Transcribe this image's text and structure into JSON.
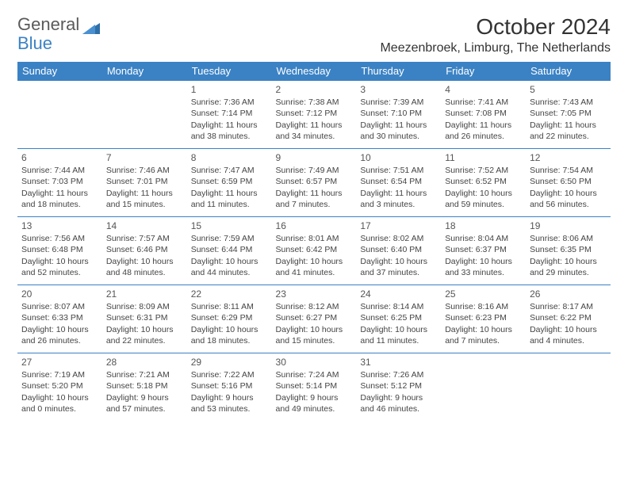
{
  "logo": {
    "general": "General",
    "blue": "Blue"
  },
  "title": "October 2024",
  "location": "Meezenbroek, Limburg, The Netherlands",
  "colors": {
    "header_bg": "#3b82c4",
    "header_fg": "#ffffff",
    "border": "#3b82c4",
    "text": "#333333",
    "logo_gray": "#5a5a5a",
    "logo_blue": "#3b82c4"
  },
  "day_headers": [
    "Sunday",
    "Monday",
    "Tuesday",
    "Wednesday",
    "Thursday",
    "Friday",
    "Saturday"
  ],
  "weeks": [
    [
      null,
      null,
      {
        "n": "1",
        "sunrise": "Sunrise: 7:36 AM",
        "sunset": "Sunset: 7:14 PM",
        "daylight": "Daylight: 11 hours and 38 minutes."
      },
      {
        "n": "2",
        "sunrise": "Sunrise: 7:38 AM",
        "sunset": "Sunset: 7:12 PM",
        "daylight": "Daylight: 11 hours and 34 minutes."
      },
      {
        "n": "3",
        "sunrise": "Sunrise: 7:39 AM",
        "sunset": "Sunset: 7:10 PM",
        "daylight": "Daylight: 11 hours and 30 minutes."
      },
      {
        "n": "4",
        "sunrise": "Sunrise: 7:41 AM",
        "sunset": "Sunset: 7:08 PM",
        "daylight": "Daylight: 11 hours and 26 minutes."
      },
      {
        "n": "5",
        "sunrise": "Sunrise: 7:43 AM",
        "sunset": "Sunset: 7:05 PM",
        "daylight": "Daylight: 11 hours and 22 minutes."
      }
    ],
    [
      {
        "n": "6",
        "sunrise": "Sunrise: 7:44 AM",
        "sunset": "Sunset: 7:03 PM",
        "daylight": "Daylight: 11 hours and 18 minutes."
      },
      {
        "n": "7",
        "sunrise": "Sunrise: 7:46 AM",
        "sunset": "Sunset: 7:01 PM",
        "daylight": "Daylight: 11 hours and 15 minutes."
      },
      {
        "n": "8",
        "sunrise": "Sunrise: 7:47 AM",
        "sunset": "Sunset: 6:59 PM",
        "daylight": "Daylight: 11 hours and 11 minutes."
      },
      {
        "n": "9",
        "sunrise": "Sunrise: 7:49 AM",
        "sunset": "Sunset: 6:57 PM",
        "daylight": "Daylight: 11 hours and 7 minutes."
      },
      {
        "n": "10",
        "sunrise": "Sunrise: 7:51 AM",
        "sunset": "Sunset: 6:54 PM",
        "daylight": "Daylight: 11 hours and 3 minutes."
      },
      {
        "n": "11",
        "sunrise": "Sunrise: 7:52 AM",
        "sunset": "Sunset: 6:52 PM",
        "daylight": "Daylight: 10 hours and 59 minutes."
      },
      {
        "n": "12",
        "sunrise": "Sunrise: 7:54 AM",
        "sunset": "Sunset: 6:50 PM",
        "daylight": "Daylight: 10 hours and 56 minutes."
      }
    ],
    [
      {
        "n": "13",
        "sunrise": "Sunrise: 7:56 AM",
        "sunset": "Sunset: 6:48 PM",
        "daylight": "Daylight: 10 hours and 52 minutes."
      },
      {
        "n": "14",
        "sunrise": "Sunrise: 7:57 AM",
        "sunset": "Sunset: 6:46 PM",
        "daylight": "Daylight: 10 hours and 48 minutes."
      },
      {
        "n": "15",
        "sunrise": "Sunrise: 7:59 AM",
        "sunset": "Sunset: 6:44 PM",
        "daylight": "Daylight: 10 hours and 44 minutes."
      },
      {
        "n": "16",
        "sunrise": "Sunrise: 8:01 AM",
        "sunset": "Sunset: 6:42 PM",
        "daylight": "Daylight: 10 hours and 41 minutes."
      },
      {
        "n": "17",
        "sunrise": "Sunrise: 8:02 AM",
        "sunset": "Sunset: 6:40 PM",
        "daylight": "Daylight: 10 hours and 37 minutes."
      },
      {
        "n": "18",
        "sunrise": "Sunrise: 8:04 AM",
        "sunset": "Sunset: 6:37 PM",
        "daylight": "Daylight: 10 hours and 33 minutes."
      },
      {
        "n": "19",
        "sunrise": "Sunrise: 8:06 AM",
        "sunset": "Sunset: 6:35 PM",
        "daylight": "Daylight: 10 hours and 29 minutes."
      }
    ],
    [
      {
        "n": "20",
        "sunrise": "Sunrise: 8:07 AM",
        "sunset": "Sunset: 6:33 PM",
        "daylight": "Daylight: 10 hours and 26 minutes."
      },
      {
        "n": "21",
        "sunrise": "Sunrise: 8:09 AM",
        "sunset": "Sunset: 6:31 PM",
        "daylight": "Daylight: 10 hours and 22 minutes."
      },
      {
        "n": "22",
        "sunrise": "Sunrise: 8:11 AM",
        "sunset": "Sunset: 6:29 PM",
        "daylight": "Daylight: 10 hours and 18 minutes."
      },
      {
        "n": "23",
        "sunrise": "Sunrise: 8:12 AM",
        "sunset": "Sunset: 6:27 PM",
        "daylight": "Daylight: 10 hours and 15 minutes."
      },
      {
        "n": "24",
        "sunrise": "Sunrise: 8:14 AM",
        "sunset": "Sunset: 6:25 PM",
        "daylight": "Daylight: 10 hours and 11 minutes."
      },
      {
        "n": "25",
        "sunrise": "Sunrise: 8:16 AM",
        "sunset": "Sunset: 6:23 PM",
        "daylight": "Daylight: 10 hours and 7 minutes."
      },
      {
        "n": "26",
        "sunrise": "Sunrise: 8:17 AM",
        "sunset": "Sunset: 6:22 PM",
        "daylight": "Daylight: 10 hours and 4 minutes."
      }
    ],
    [
      {
        "n": "27",
        "sunrise": "Sunrise: 7:19 AM",
        "sunset": "Sunset: 5:20 PM",
        "daylight": "Daylight: 10 hours and 0 minutes."
      },
      {
        "n": "28",
        "sunrise": "Sunrise: 7:21 AM",
        "sunset": "Sunset: 5:18 PM",
        "daylight": "Daylight: 9 hours and 57 minutes."
      },
      {
        "n": "29",
        "sunrise": "Sunrise: 7:22 AM",
        "sunset": "Sunset: 5:16 PM",
        "daylight": "Daylight: 9 hours and 53 minutes."
      },
      {
        "n": "30",
        "sunrise": "Sunrise: 7:24 AM",
        "sunset": "Sunset: 5:14 PM",
        "daylight": "Daylight: 9 hours and 49 minutes."
      },
      {
        "n": "31",
        "sunrise": "Sunrise: 7:26 AM",
        "sunset": "Sunset: 5:12 PM",
        "daylight": "Daylight: 9 hours and 46 minutes."
      },
      null,
      null
    ]
  ]
}
